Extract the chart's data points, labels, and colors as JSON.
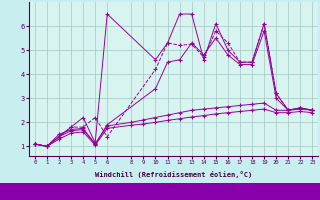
{
  "background_color": "#c8eef0",
  "grid_color": "#a0c8c0",
  "line_colors": [
    "#990099",
    "#cc00cc",
    "#aa0088",
    "#880099",
    "#660077"
  ],
  "plot_bg": "#d8f4f0",
  "xlabel": "Windchill (Refroidissement éolien,°C)",
  "xlim": [
    -0.5,
    23.5
  ],
  "ylim": [
    0.6,
    7.0
  ],
  "xticks": [
    0,
    1,
    2,
    3,
    4,
    5,
    6,
    8,
    9,
    10,
    11,
    12,
    13,
    14,
    15,
    16,
    17,
    18,
    19,
    20,
    21,
    22,
    23
  ],
  "yticks": [
    1,
    2,
    3,
    4,
    5,
    6
  ],
  "series": [
    {
      "x": [
        0,
        1,
        2,
        3,
        4,
        5,
        6,
        10,
        11,
        12,
        13,
        14,
        15,
        16,
        17,
        18,
        19,
        20,
        21,
        22,
        23
      ],
      "y": [
        1.1,
        1.0,
        1.4,
        1.8,
        2.2,
        1.15,
        6.5,
        4.6,
        5.3,
        6.5,
        6.5,
        4.6,
        6.1,
        5.0,
        4.5,
        4.5,
        6.1,
        3.2,
        2.5,
        2.6,
        2.5
      ],
      "style": "solid"
    },
    {
      "x": [
        0,
        1,
        2,
        3,
        4,
        5,
        6,
        10,
        11,
        12,
        13,
        14,
        15,
        16,
        17,
        18,
        19,
        20,
        21,
        22,
        23
      ],
      "y": [
        1.1,
        1.0,
        1.4,
        1.8,
        1.8,
        2.2,
        1.4,
        4.2,
        5.3,
        5.2,
        5.25,
        4.7,
        5.8,
        5.3,
        4.5,
        4.5,
        6.1,
        3.2,
        2.5,
        2.6,
        2.5
      ],
      "style": "dotted"
    },
    {
      "x": [
        0,
        1,
        2,
        3,
        4,
        5,
        6,
        10,
        11,
        12,
        13,
        14,
        15,
        16,
        17,
        18,
        19,
        20,
        21,
        22,
        23
      ],
      "y": [
        1.1,
        1.0,
        1.5,
        1.7,
        1.75,
        1.1,
        1.9,
        3.4,
        4.5,
        4.6,
        5.3,
        4.8,
        5.5,
        4.8,
        4.4,
        4.4,
        5.8,
        3.0,
        2.5,
        2.6,
        2.5
      ],
      "style": "solid"
    },
    {
      "x": [
        0,
        1,
        2,
        3,
        4,
        5,
        6,
        8,
        9,
        10,
        11,
        12,
        13,
        14,
        15,
        16,
        17,
        18,
        19,
        20,
        21,
        22,
        23
      ],
      "y": [
        1.1,
        1.0,
        1.4,
        1.65,
        1.7,
        1.1,
        1.85,
        2.0,
        2.1,
        2.2,
        2.3,
        2.4,
        2.5,
        2.55,
        2.6,
        2.65,
        2.7,
        2.75,
        2.8,
        2.5,
        2.5,
        2.55,
        2.5
      ],
      "style": "solid"
    },
    {
      "x": [
        0,
        1,
        2,
        3,
        4,
        5,
        6,
        8,
        9,
        10,
        11,
        12,
        13,
        14,
        15,
        16,
        17,
        18,
        19,
        20,
        21,
        22,
        23
      ],
      "y": [
        1.1,
        1.0,
        1.3,
        1.55,
        1.6,
        1.05,
        1.75,
        1.88,
        1.93,
        2.0,
        2.08,
        2.15,
        2.22,
        2.28,
        2.35,
        2.4,
        2.45,
        2.5,
        2.55,
        2.4,
        2.4,
        2.45,
        2.4
      ],
      "style": "solid"
    }
  ]
}
